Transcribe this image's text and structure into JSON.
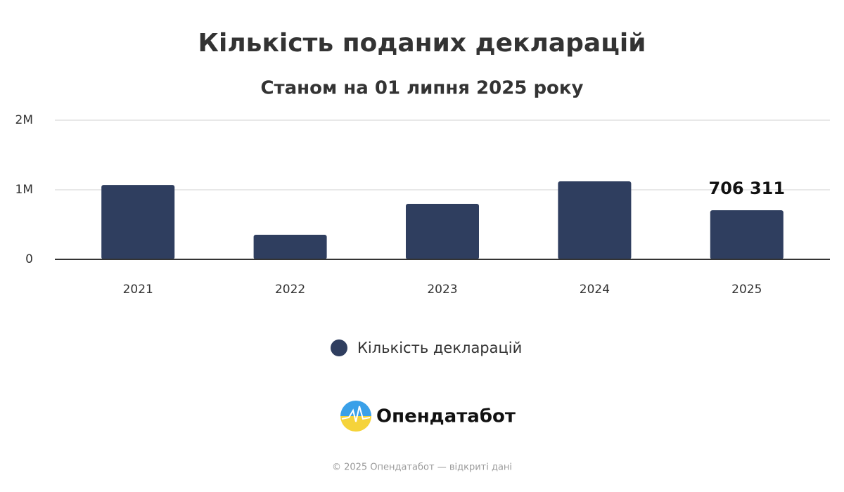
{
  "chart_data": {
    "type": "bar",
    "title": "Кількість поданих декларацій",
    "subtitle": "Станом на 01 липня 2025 року",
    "categories": [
      "2021",
      "2022",
      "2023",
      "2024",
      "2025"
    ],
    "series": [
      {
        "name": "Кількість декларацій",
        "color": "#2f3e5f",
        "values": [
          1070000,
          354000,
          798000,
          1121000,
          706311
        ],
        "value_labels": [
          null,
          null,
          null,
          null,
          "706 311"
        ]
      }
    ],
    "ylim": [
      0,
      2000000
    ],
    "yticks": [
      0,
      {
        "value": 1000000,
        "label": "1M"
      },
      {
        "value": 2000000,
        "label": "2M"
      }
    ],
    "grid": true,
    "legend": "bottom"
  },
  "brand": {
    "name": "Опендатабот",
    "footer": "© 2025 Опендатабот — відкриті дані"
  }
}
